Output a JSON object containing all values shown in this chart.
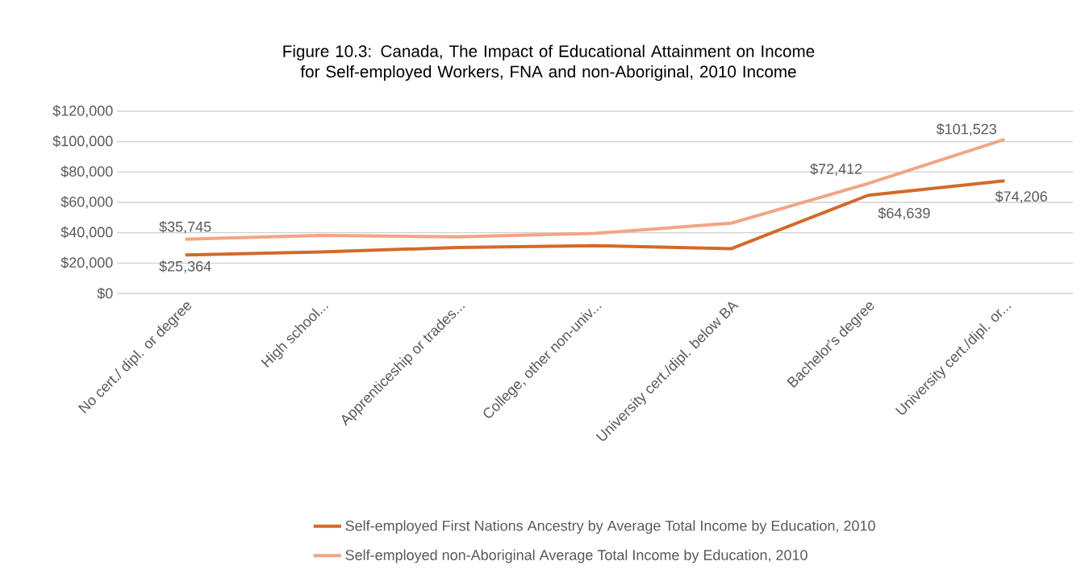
{
  "chart_data": {
    "type": "line",
    "title": "Figure 10.3: Canada, The Impact of Educational Attainment on Income for Self-employed Workers, FNA and non-Aboriginal, 2010 Income",
    "categories": [
      "No cert./ dipl. or degree",
      "High school...",
      "Apprenticeship or trades...",
      "College, other non-univ...",
      "University cert./dipl. below BA",
      "Bachelor's degree",
      "University cert./dipl. or..."
    ],
    "series": [
      {
        "name": "Self-employed First Nations Ancestry by Average Total Income by Education, 2010",
        "color": "#d4692a",
        "values": [
          25364,
          27300,
          30300,
          31500,
          29500,
          64639,
          74206
        ],
        "value_labels": [
          "$25,364",
          null,
          null,
          null,
          null,
          "$64,639",
          "$74,206"
        ]
      },
      {
        "name": "Self-employed non-Aboriginal Average Total Income by Education, 2010",
        "color": "#f2a585",
        "values": [
          35745,
          38200,
          37300,
          39500,
          46300,
          72412,
          101523
        ],
        "value_labels": [
          "$35,745",
          null,
          null,
          null,
          null,
          "$72,412",
          "$101,523"
        ]
      }
    ],
    "ylim": [
      0,
      120000
    ],
    "yticks": [
      {
        "value": 0,
        "label": "$0"
      },
      {
        "value": 20000,
        "label": "$20,000"
      },
      {
        "value": 40000,
        "label": "$40,000"
      },
      {
        "value": 60000,
        "label": "$60,000"
      },
      {
        "value": 80000,
        "label": "$80,000"
      },
      {
        "value": 100000,
        "label": "$100,000"
      },
      {
        "value": 120000,
        "label": "$120,000"
      }
    ],
    "grid": "y",
    "legend": "bottom",
    "marker": "none",
    "line_style": "solid"
  }
}
